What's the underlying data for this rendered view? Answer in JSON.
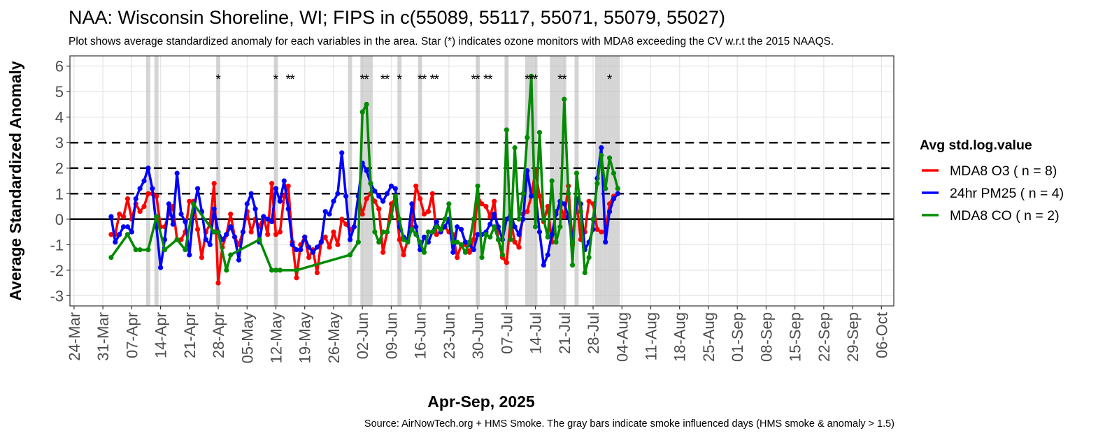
{
  "chart_data": {
    "type": "line",
    "title": "NAA: Wisconsin Shoreline, WI; FIPS in c(55089, 55117, 55071, 55079, 55027)",
    "subtitle": "Plot shows average standardized anomaly for each variables in the area. Star (*) indicates ozone monitors with MDA8 exceeding the CV w.r.t the 2015 NAAQS.",
    "y_label": "Average Standardized Anomaly",
    "x_label": "Apr-Sep, 2025",
    "caption": "Source: AirNowTech.org + HMS Smoke. The gray bars indicate smoke influenced days (HMS smoke & anomaly > 1.5)",
    "legend_title": "Avg std.log.value",
    "legend_position": "right",
    "grid": true,
    "ylim": [
      -3.4,
      6.4
    ],
    "yticks": [
      -3,
      -2,
      -1,
      0,
      1,
      2,
      3,
      4,
      5,
      6
    ],
    "xlim": [
      "2025-03-23",
      "2025-10-09"
    ],
    "xticks": [
      {
        "value": "2025-03-24",
        "label": "24-Mar"
      },
      {
        "value": "2025-03-31",
        "label": "31-Mar"
      },
      {
        "value": "2025-04-07",
        "label": "07-Apr"
      },
      {
        "value": "2025-04-14",
        "label": "14-Apr"
      },
      {
        "value": "2025-04-21",
        "label": "21-Apr"
      },
      {
        "value": "2025-04-28",
        "label": "28-Apr"
      },
      {
        "value": "2025-05-05",
        "label": "05-May"
      },
      {
        "value": "2025-05-12",
        "label": "12-May"
      },
      {
        "value": "2025-05-19",
        "label": "19-May"
      },
      {
        "value": "2025-05-26",
        "label": "26-May"
      },
      {
        "value": "2025-06-02",
        "label": "02-Jun"
      },
      {
        "value": "2025-06-09",
        "label": "09-Jun"
      },
      {
        "value": "2025-06-16",
        "label": "16-Jun"
      },
      {
        "value": "2025-06-23",
        "label": "23-Jun"
      },
      {
        "value": "2025-06-30",
        "label": "30-Jun"
      },
      {
        "value": "2025-07-07",
        "label": "07-Jul"
      },
      {
        "value": "2025-07-14",
        "label": "14-Jul"
      },
      {
        "value": "2025-07-21",
        "label": "21-Jul"
      },
      {
        "value": "2025-07-28",
        "label": "28-Jul"
      },
      {
        "value": "2025-08-04",
        "label": "04-Aug"
      },
      {
        "value": "2025-08-11",
        "label": "11-Aug"
      },
      {
        "value": "2025-08-18",
        "label": "18-Aug"
      },
      {
        "value": "2025-08-25",
        "label": "25-Aug"
      },
      {
        "value": "2025-09-01",
        "label": "01-Sep"
      },
      {
        "value": "2025-09-08",
        "label": "08-Sep"
      },
      {
        "value": "2025-09-15",
        "label": "15-Sep"
      },
      {
        "value": "2025-09-22",
        "label": "22-Sep"
      },
      {
        "value": "2025-09-29",
        "label": "29-Sep"
      },
      {
        "value": "2025-10-06",
        "label": "06-Oct"
      }
    ],
    "dashed_lines": [
      1,
      2,
      3
    ],
    "zero_line": 0,
    "smoke_days": [
      "2025-04-11",
      "2025-04-13",
      "2025-04-28",
      "2025-05-12",
      "2025-05-30",
      "2025-06-02",
      "2025-06-03",
      "2025-06-04",
      "2025-06-11",
      "2025-06-16",
      "2025-06-30",
      "2025-07-07",
      "2025-07-12",
      "2025-07-13",
      "2025-07-14",
      "2025-07-18",
      "2025-07-19",
      "2025-07-20",
      "2025-07-21",
      "2025-07-24",
      "2025-07-29",
      "2025-07-30",
      "2025-07-31",
      "2025-08-01",
      "2025-08-02",
      "2025-08-03"
    ],
    "exceedance_marker": "*",
    "exceedance_days": [
      "2025-04-28",
      "2025-05-12",
      "2025-05-15",
      "2025-05-16",
      "2025-06-02",
      "2025-06-03",
      "2025-06-07",
      "2025-06-08",
      "2025-06-11",
      "2025-06-16",
      "2025-06-17",
      "2025-06-19",
      "2025-06-20",
      "2025-06-29",
      "2025-06-30",
      "2025-07-02",
      "2025-07-03",
      "2025-07-12",
      "2025-07-13",
      "2025-07-14",
      "2025-07-20",
      "2025-07-21",
      "2025-08-01"
    ],
    "x": [
      "2025-04-02",
      "2025-04-03",
      "2025-04-04",
      "2025-04-05",
      "2025-04-06",
      "2025-04-07",
      "2025-04-08",
      "2025-04-09",
      "2025-04-10",
      "2025-04-11",
      "2025-04-12",
      "2025-04-13",
      "2025-04-14",
      "2025-04-15",
      "2025-04-16",
      "2025-04-17",
      "2025-04-18",
      "2025-04-19",
      "2025-04-20",
      "2025-04-21",
      "2025-04-22",
      "2025-04-23",
      "2025-04-24",
      "2025-04-25",
      "2025-04-26",
      "2025-04-27",
      "2025-04-28",
      "2025-04-29",
      "2025-04-30",
      "2025-05-01",
      "2025-05-02",
      "2025-05-03",
      "2025-05-04",
      "2025-05-05",
      "2025-05-06",
      "2025-05-07",
      "2025-05-08",
      "2025-05-09",
      "2025-05-10",
      "2025-05-11",
      "2025-05-12",
      "2025-05-13",
      "2025-05-14",
      "2025-05-15",
      "2025-05-16",
      "2025-05-17",
      "2025-05-18",
      "2025-05-19",
      "2025-05-20",
      "2025-05-21",
      "2025-05-22",
      "2025-05-23",
      "2025-05-24",
      "2025-05-25",
      "2025-05-26",
      "2025-05-27",
      "2025-05-28",
      "2025-05-29",
      "2025-05-30",
      "2025-05-31",
      "2025-06-01",
      "2025-06-02",
      "2025-06-03",
      "2025-06-04",
      "2025-06-05",
      "2025-06-06",
      "2025-06-07",
      "2025-06-08",
      "2025-06-09",
      "2025-06-10",
      "2025-06-11",
      "2025-06-12",
      "2025-06-13",
      "2025-06-14",
      "2025-06-15",
      "2025-06-16",
      "2025-06-17",
      "2025-06-18",
      "2025-06-19",
      "2025-06-20",
      "2025-06-21",
      "2025-06-22",
      "2025-06-23",
      "2025-06-24",
      "2025-06-25",
      "2025-06-26",
      "2025-06-27",
      "2025-06-28",
      "2025-06-29",
      "2025-06-30",
      "2025-07-01",
      "2025-07-02",
      "2025-07-03",
      "2025-07-04",
      "2025-07-05",
      "2025-07-06",
      "2025-07-07",
      "2025-07-08",
      "2025-07-09",
      "2025-07-10",
      "2025-07-11",
      "2025-07-12",
      "2025-07-13",
      "2025-07-14",
      "2025-07-15",
      "2025-07-16",
      "2025-07-17",
      "2025-07-18",
      "2025-07-19",
      "2025-07-20",
      "2025-07-21",
      "2025-07-22",
      "2025-07-23",
      "2025-07-24",
      "2025-07-25",
      "2025-07-26",
      "2025-07-27",
      "2025-07-28",
      "2025-07-29",
      "2025-07-30",
      "2025-07-31",
      "2025-08-01",
      "2025-08-02",
      "2025-08-03"
    ],
    "series": [
      {
        "name": "MDA8 O3 ( n = 8)",
        "color": "#ff0000",
        "values": [
          -0.6,
          -0.6,
          0.2,
          0.1,
          0.8,
          0.0,
          0.6,
          0.3,
          0.5,
          1.0,
          1.0,
          0.9,
          -0.3,
          -0.3,
          0.2,
          0.5,
          -0.8,
          -0.8,
          -0.5,
          0.7,
          0.7,
          -0.4,
          -1.5,
          -0.5,
          -0.2,
          1.4,
          -2.5,
          -1.1,
          -0.6,
          0.2,
          -0.7,
          -1.0,
          -0.5,
          0.3,
          -0.5,
          0.0,
          -0.3,
          0.1,
          -0.6,
          1.4,
          -0.6,
          -0.5,
          0.9,
          1.3,
          -0.9,
          -2.3,
          -1.0,
          -0.7,
          -1.5,
          -1.2,
          -2.1,
          -0.9,
          -0.7,
          -1.1,
          -0.5,
          -1.0,
          0.0,
          -0.2,
          -0.4,
          -0.3,
          0.9,
          0.2,
          0.8,
          1.0,
          0.7,
          0.4,
          -1.3,
          -0.5,
          0.6,
          0.8,
          -0.8,
          -1.4,
          -0.8,
          -0.3,
          1.3,
          0.8,
          0.2,
          0.3,
          1.0,
          -0.6,
          -0.5,
          -0.3,
          -0.5,
          -0.6,
          -1.5,
          -1.0,
          -1.0,
          -1.3,
          -0.8,
          0.9,
          0.6,
          0.5,
          0.1,
          0.7,
          -0.8,
          -1.5,
          -1.7,
          0.0,
          -0.9,
          -1.1,
          0.2,
          0.3,
          0.9,
          1.9,
          0.9,
          -0.1,
          0.5,
          -0.9,
          0.3,
          0.5,
          0.1,
          1.3,
          -1.0,
          0.7,
          -0.8,
          -0.5,
          0.7,
          0.6,
          -0.4,
          -0.5,
          -0.5,
          0.6,
          0.9,
          1.0
        ]
      },
      {
        "name": "24hr PM25 ( n = 4)",
        "color": "#0000ff",
        "values": [
          0.1,
          -0.9,
          -0.6,
          -0.3,
          -0.3,
          -0.5,
          0.8,
          1.2,
          1.5,
          2.0,
          1.2,
          -0.3,
          -1.9,
          -0.8,
          0.6,
          -0.2,
          1.8,
          0.2,
          -0.1,
          -1.4,
          0.3,
          1.2,
          0.3,
          -0.8,
          -1.0,
          0.4,
          -0.5,
          -0.8,
          -0.6,
          -0.3,
          -0.7,
          -1.6,
          -0.5,
          0.6,
          1.0,
          0.4,
          -0.9,
          0.1,
          0.0,
          -0.1,
          1.2,
          0.7,
          1.5,
          0.4,
          -1.0,
          -1.2,
          -1.2,
          -0.7,
          -1.1,
          -1.3,
          -1.1,
          -0.9,
          0.3,
          0.2,
          0.7,
          1.0,
          2.6,
          0.9,
          -0.8,
          -0.3,
          0.9,
          2.2,
          1.9,
          1.4,
          1.1,
          0.9,
          0.7,
          1.0,
          1.3,
          1.2,
          -0.3,
          -0.7,
          -0.8,
          0.6,
          -0.3,
          -1.2,
          -0.7,
          -0.9,
          -0.5,
          -0.1,
          -0.5,
          -0.3,
          0.0,
          -1.3,
          -0.3,
          -0.4,
          -0.9,
          -1.0,
          -1.2,
          -0.6,
          -0.6,
          -0.5,
          -0.2,
          0.2,
          -0.3,
          -0.8,
          0.0,
          0.2,
          -0.3,
          -0.6,
          0.0,
          1.9,
          0.9,
          1.0,
          -0.5,
          -1.8,
          -1.4,
          -0.6,
          0.2,
          0.7,
          0.6,
          0.1,
          -0.9,
          0.8,
          0.6,
          -1.2,
          -0.9,
          -0.4,
          1.6,
          2.8,
          -0.9,
          0.3,
          0.8,
          1.0
        ]
      },
      {
        "name": "MDA8 CO ( n = 2)",
        "color": "#008b00",
        "x": [
          "2025-04-02",
          "2025-04-06",
          "2025-04-08",
          "2025-04-09",
          "2025-04-11",
          "2025-04-13",
          "2025-04-15",
          "2025-04-18",
          "2025-04-20",
          "2025-04-22",
          "2025-04-27",
          "2025-04-28",
          "2025-04-30",
          "2025-05-01",
          "2025-05-08",
          "2025-05-11",
          "2025-05-12",
          "2025-05-13",
          "2025-05-17",
          "2025-05-30",
          "2025-06-01",
          "2025-06-02",
          "2025-06-03",
          "2025-06-04",
          "2025-06-05",
          "2025-06-06",
          "2025-06-07",
          "2025-06-08",
          "2025-06-09",
          "2025-06-10",
          "2025-06-11",
          "2025-06-12",
          "2025-06-13",
          "2025-06-14",
          "2025-06-15",
          "2025-06-16",
          "2025-06-17",
          "2025-06-18",
          "2025-06-19",
          "2025-06-20",
          "2025-06-21",
          "2025-06-22",
          "2025-06-23",
          "2025-06-24",
          "2025-06-25",
          "2025-06-26",
          "2025-06-27",
          "2025-06-28",
          "2025-06-29",
          "2025-06-30",
          "2025-07-01",
          "2025-07-02",
          "2025-07-03",
          "2025-07-04",
          "2025-07-05",
          "2025-07-06",
          "2025-07-07",
          "2025-07-08",
          "2025-07-09",
          "2025-07-10",
          "2025-07-11",
          "2025-07-12",
          "2025-07-13",
          "2025-07-14",
          "2025-07-15",
          "2025-07-16",
          "2025-07-17",
          "2025-07-18",
          "2025-07-19",
          "2025-07-20",
          "2025-07-21",
          "2025-07-22",
          "2025-07-23",
          "2025-07-24",
          "2025-07-25",
          "2025-07-26",
          "2025-07-27",
          "2025-07-28",
          "2025-07-29",
          "2025-07-30",
          "2025-07-31",
          "2025-08-01",
          "2025-08-02",
          "2025-08-03"
        ],
        "values": [
          -1.5,
          -0.6,
          -1.2,
          -1.2,
          -1.2,
          0.1,
          -1.2,
          -0.8,
          -1.2,
          0.6,
          -0.5,
          -0.5,
          -2.0,
          -1.4,
          -0.8,
          -2.0,
          -2.0,
          -2.0,
          -2.0,
          -1.4,
          -0.9,
          4.2,
          4.5,
          1.4,
          -0.5,
          -0.9,
          -0.5,
          -0.5,
          0.1,
          0.9,
          0.0,
          -0.8,
          -0.9,
          -0.4,
          -0.6,
          -0.9,
          -1.3,
          -0.5,
          -0.5,
          -0.3,
          -0.4,
          0.0,
          0.6,
          -0.9,
          -0.9,
          -1.0,
          -1.3,
          -0.9,
          0.0,
          1.3,
          -1.5,
          -0.6,
          -0.7,
          -0.3,
          -0.8,
          -1.4,
          3.5,
          -0.8,
          2.8,
          0.0,
          1.0,
          3.2,
          5.6,
          -0.3,
          3.4,
          0.0,
          -0.7,
          1.5,
          -0.9,
          -0.3,
          4.7,
          1.0,
          -1.8,
          1.8,
          0.3,
          -2.1,
          -1.5,
          0.0,
          1.4,
          2.5,
          1.2,
          2.4,
          1.8,
          1.2
        ]
      }
    ]
  }
}
